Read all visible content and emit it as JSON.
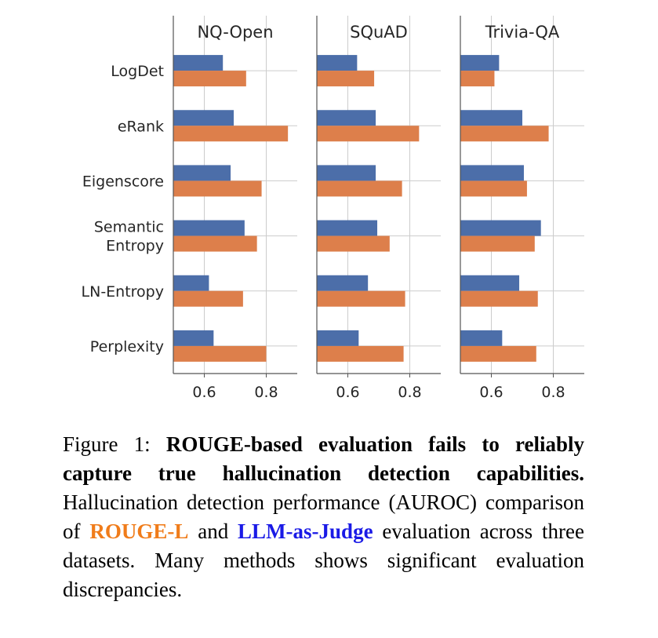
{
  "chart_data": {
    "type": "bar",
    "orientation": "horizontal",
    "categories": [
      "LogDet",
      "eRank",
      "Eigenscore",
      "Semantic\nEntropy",
      "LN-Entropy",
      "Perplexity"
    ],
    "series_colors": [
      "#4c6ea9",
      "#dd7f4b"
    ],
    "xlim": [
      0.5,
      0.9
    ],
    "xticks": [
      "0.6",
      "0.8"
    ],
    "xtick_values": [
      0.6,
      0.8
    ],
    "grid": true,
    "panels": [
      {
        "title": "NQ-Open",
        "series": [
          {
            "values": [
              0.66,
              0.695,
              0.685,
              0.73,
              0.615,
              0.63
            ]
          },
          {
            "values": [
              0.735,
              0.87,
              0.785,
              0.77,
              0.725,
              0.8
            ]
          }
        ]
      },
      {
        "title": "SQuAD",
        "series": [
          {
            "values": [
              0.63,
              0.69,
              0.69,
              0.695,
              0.665,
              0.635
            ]
          },
          {
            "values": [
              0.685,
              0.83,
              0.775,
              0.735,
              0.785,
              0.78
            ]
          }
        ]
      },
      {
        "title": "Trivia-QA",
        "series": [
          {
            "values": [
              0.625,
              0.7,
              0.705,
              0.76,
              0.69,
              0.635
            ]
          },
          {
            "values": [
              0.61,
              0.785,
              0.715,
              0.74,
              0.75,
              0.745
            ]
          }
        ]
      }
    ]
  },
  "caption": {
    "prefix": "Figure 1: ",
    "bold": "ROUGE-based evaluation fails to reliably capture true hallucination detection capabilities.",
    "text1": " Hallucination detection performance (AUROC) comparison of ",
    "rouge": "ROUGE-L",
    "text2": " and ",
    "judge": "LLM-as-Judge",
    "text3": " evaluation across three datasets. Many methods shows significant evaluation discrepancies."
  }
}
